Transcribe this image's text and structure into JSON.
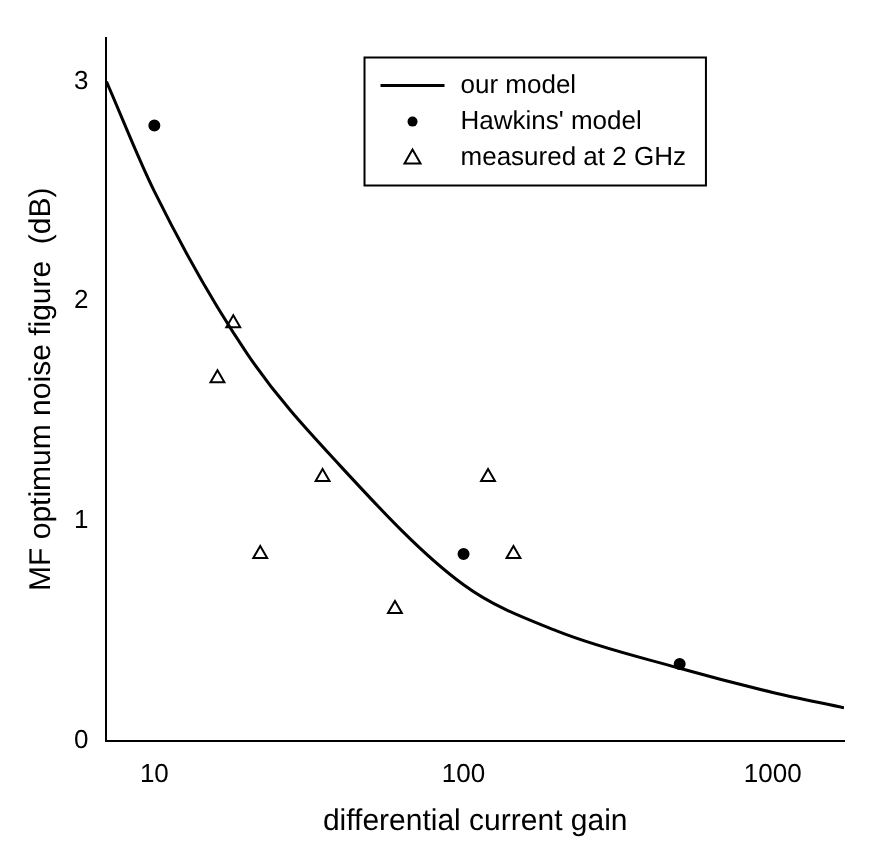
{
  "chart_data": {
    "type": "line",
    "xlabel": "differential current gain",
    "ylabel": "MF optimum noise figure  (dB)",
    "log": "x",
    "xlim": [
      7,
      1700
    ],
    "xticks": [
      10,
      100,
      1000
    ],
    "ylim": [
      0,
      3.2
    ],
    "yticks": [
      0,
      1,
      2,
      3
    ],
    "grid": false,
    "legend": "top",
    "series": [
      {
        "name": "our model",
        "color": "#000000",
        "marker": "none",
        "line_style": "solid",
        "x": [
          7,
          10,
          20,
          40,
          100,
          200,
          500,
          1000,
          1700
        ],
        "values": [
          3.0,
          2.5,
          1.76,
          1.25,
          0.71,
          0.5,
          0.33,
          0.22,
          0.15
        ]
      },
      {
        "name": "Hawkins' model",
        "type": "scatter",
        "color": "#000000",
        "marker": "circle",
        "x": [
          10,
          100,
          500
        ],
        "values": [
          2.8,
          0.85,
          0.35
        ]
      },
      {
        "name": "measured at 2 GHz",
        "type": "scatter",
        "color": "#000000",
        "marker": "triangle",
        "x": [
          16,
          18,
          22,
          35,
          60,
          120,
          145
        ],
        "values": [
          1.65,
          1.9,
          0.85,
          1.2,
          0.6,
          1.2,
          0.85
        ]
      }
    ]
  }
}
